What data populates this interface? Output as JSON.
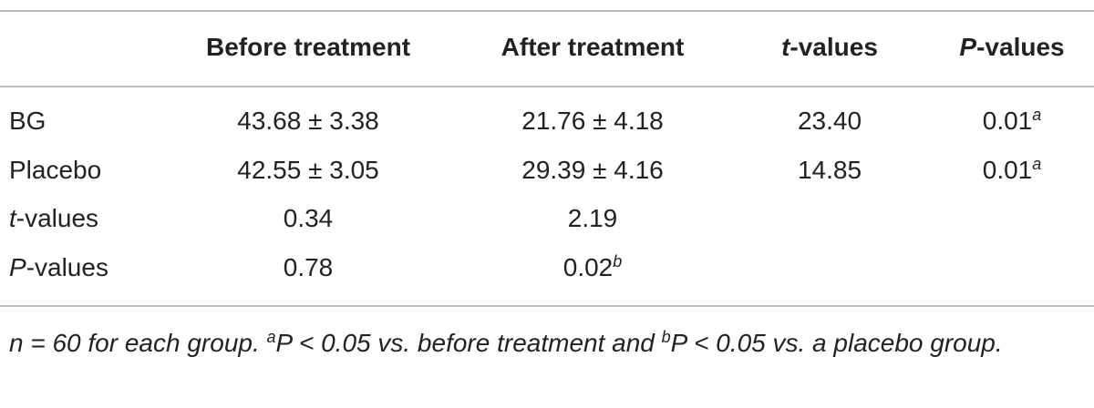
{
  "table": {
    "header": [
      {
        "text": "Before treatment"
      },
      {
        "text": "After treatment"
      },
      {
        "em": "t",
        "text": "-values"
      },
      {
        "em": "P",
        "text": "-values"
      }
    ],
    "rows": [
      {
        "label": {
          "text": "BG"
        },
        "cells": [
          {
            "text": "43.68 ± 3.38"
          },
          {
            "text": "21.76 ± 4.18"
          },
          {
            "text": "23.40"
          },
          {
            "text": "0.01",
            "sup": "a"
          }
        ]
      },
      {
        "label": {
          "text": "Placebo"
        },
        "cells": [
          {
            "text": "42.55 ± 3.05"
          },
          {
            "text": "29.39 ± 4.16"
          },
          {
            "text": "14.85"
          },
          {
            "text": "0.01",
            "sup": "a"
          }
        ]
      },
      {
        "label": {
          "em": "t",
          "text": "-values"
        },
        "cells": [
          {
            "text": "0.34"
          },
          {
            "text": "2.19"
          }
        ]
      },
      {
        "label": {
          "em": "P",
          "text": "-values"
        },
        "cells": [
          {
            "text": "0.78"
          },
          {
            "text": "0.02",
            "sup": "b"
          }
        ]
      }
    ],
    "footnote": [
      {
        "text": "n = 60 for each group. "
      },
      {
        "sup": "a"
      },
      {
        "text": "P < 0.05 vs. before treatment and "
      },
      {
        "sup": "b"
      },
      {
        "text": "P < 0.05 vs. a placebo group."
      }
    ]
  }
}
